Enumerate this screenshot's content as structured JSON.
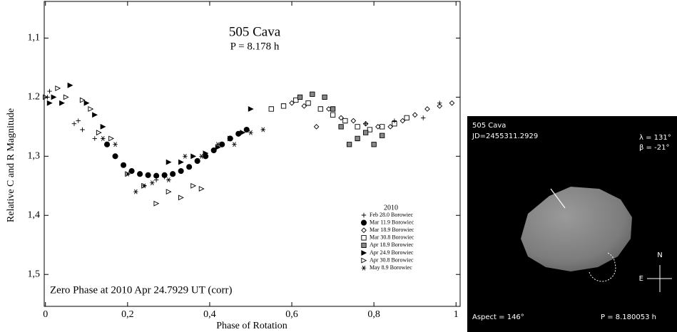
{
  "chart_data": {
    "type": "scatter",
    "title": "505 Cava",
    "subtitle": "P = 8.178 h",
    "annotation": "Zero Phase at 2010 Apr 24.7929 UT (corr)",
    "x_label": "Phase of Rotation",
    "y_label": "Relative C and R Magnitude",
    "xlim": [
      -0.003,
      1.01
    ],
    "ylim": [
      1.038,
      1.554
    ],
    "y_inverted": true,
    "xticks": [
      0,
      {
        "value": 0.2,
        "label": "0,2"
      },
      {
        "value": 0.4,
        "label": "0,4"
      },
      {
        "value": 0.6,
        "label": "0,6"
      },
      {
        "value": 0.8,
        "label": "0,8"
      },
      1
    ],
    "yticks": [
      {
        "value": 1.1,
        "label": "1,1"
      },
      {
        "value": 1.2,
        "label": "1.2"
      },
      {
        "value": 1.3,
        "label": "1,3"
      },
      {
        "value": 1.4,
        "label": "1,4"
      },
      {
        "value": 1.5,
        "label": "1,5"
      }
    ],
    "legend_title": "2010",
    "legend_position": "lower right",
    "series": [
      {
        "name": "Feb 28.0 Borowiec",
        "color": "#000",
        "marker": "plus",
        "x": [
          0.005,
          0.01,
          0.07,
          0.08,
          0.09,
          0.12,
          0.27,
          0.29,
          0.31,
          0.78,
          0.85,
          0.92,
          0.96
        ],
        "values": [
          1.2,
          1.19,
          1.245,
          1.24,
          1.255,
          1.27,
          1.34,
          1.335,
          1.33,
          1.245,
          1.24,
          1.235,
          1.21
        ]
      },
      {
        "name": "Mar 11.9 Borowiec",
        "color": "#000",
        "marker": "circle",
        "x": [
          0.15,
          0.17,
          0.19,
          0.21,
          0.23,
          0.25,
          0.27,
          0.29,
          0.31,
          0.33,
          0.35,
          0.37,
          0.39,
          0.41,
          0.43,
          0.45,
          0.47,
          0.49
        ],
        "values": [
          1.28,
          1.3,
          1.315,
          1.325,
          1.33,
          1.332,
          1.333,
          1.332,
          1.33,
          1.325,
          1.318,
          1.308,
          1.3,
          1.29,
          1.28,
          1.27,
          1.262,
          1.255
        ]
      },
      {
        "name": "Mar 18.9 Borowiec",
        "color": "#000",
        "marker": "diamond",
        "x": [
          0.6,
          0.63,
          0.66,
          0.69,
          0.72,
          0.75,
          0.78,
          0.81,
          0.84,
          0.87,
          0.9,
          0.93,
          0.96,
          0.99
        ],
        "values": [
          1.21,
          1.215,
          1.25,
          1.22,
          1.235,
          1.24,
          1.245,
          1.25,
          1.25,
          1.24,
          1.23,
          1.22,
          1.215,
          1.21
        ]
      },
      {
        "name": "Mar 30.8 Borowiec",
        "color": "#000",
        "marker": "square",
        "x": [
          0.55,
          0.58,
          0.61,
          0.64,
          0.67,
          0.7,
          0.73,
          0.76,
          0.79,
          0.82,
          0.85,
          0.88
        ],
        "values": [
          1.22,
          1.215,
          1.205,
          1.21,
          1.22,
          1.23,
          1.24,
          1.25,
          1.255,
          1.25,
          1.245,
          1.235
        ]
      },
      {
        "name": "Apr 18.9 Borowiec",
        "color": "#000",
        "marker": "hatched-square",
        "x": [
          0.62,
          0.65,
          0.68,
          0.7,
          0.72,
          0.74,
          0.76,
          0.78,
          0.8,
          0.82
        ],
        "values": [
          1.2,
          1.195,
          1.2,
          1.22,
          1.25,
          1.28,
          1.27,
          1.26,
          1.28,
          1.265
        ]
      },
      {
        "name": "Apr 24.9 Borowiec",
        "color": "#000",
        "marker": "triangle-filled",
        "x": [
          0.01,
          0.02,
          0.04,
          0.06,
          0.1,
          0.12,
          0.14,
          0.3,
          0.33,
          0.36,
          0.39,
          0.42,
          0.45,
          0.48,
          0.5
        ],
        "values": [
          1.21,
          1.2,
          1.21,
          1.18,
          1.21,
          1.23,
          1.25,
          1.31,
          1.31,
          1.3,
          1.295,
          1.285,
          1.27,
          1.26,
          1.22
        ]
      },
      {
        "name": "Apr 30.8 Borowiec",
        "color": "#000",
        "marker": "triangle-open",
        "x": [
          0.0,
          0.03,
          0.05,
          0.09,
          0.11,
          0.13,
          0.16,
          0.2,
          0.24,
          0.27,
          0.3,
          0.33,
          0.36,
          0.38
        ],
        "values": [
          1.2,
          1.185,
          1.2,
          1.205,
          1.22,
          1.26,
          1.27,
          1.33,
          1.35,
          1.38,
          1.36,
          1.37,
          1.35,
          1.355
        ]
      },
      {
        "name": "May 8.9 Borowiec",
        "color": "#000",
        "marker": "asterisk",
        "x": [
          0.14,
          0.17,
          0.2,
          0.22,
          0.24,
          0.26,
          0.3,
          0.34,
          0.38,
          0.42,
          0.46,
          0.5,
          0.53
        ],
        "values": [
          1.27,
          1.28,
          1.33,
          1.36,
          1.35,
          1.345,
          1.34,
          1.3,
          1.3,
          1.28,
          1.28,
          1.26,
          1.255
        ]
      }
    ]
  },
  "shape_model": {
    "name": "505 Cava",
    "jd": "JD=2455311.2929",
    "lambda": "λ = 131°",
    "beta": "β = -21°",
    "aspect": "Aspect = 146°",
    "period": "P = 8.180053 h",
    "north": "N",
    "east": "E"
  }
}
